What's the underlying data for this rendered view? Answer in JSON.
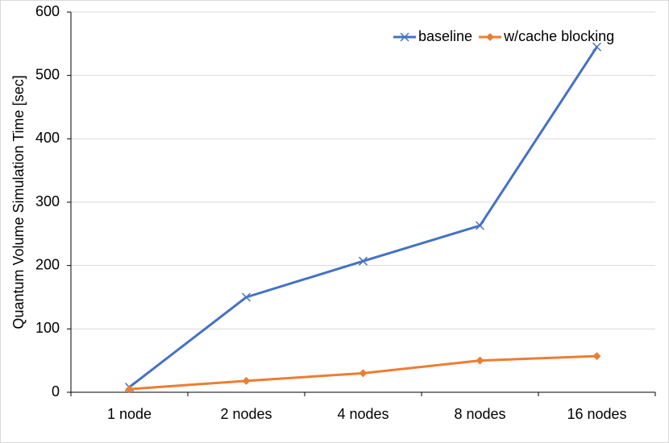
{
  "chart_data": {
    "type": "line",
    "y_label": "Quantum Volume Simulation Time [sec]",
    "categories": [
      "1 node",
      "2 nodes",
      "4 nodes",
      "8 nodes",
      "16 nodes"
    ],
    "series": [
      {
        "name": "baseline",
        "color": "#4472c4",
        "marker": "x",
        "values": [
          8,
          150,
          207,
          263,
          545
        ]
      },
      {
        "name": "w/cache blocking",
        "color": "#ed7d31",
        "marker": "diamond",
        "values": [
          5,
          18,
          30,
          50,
          57
        ]
      }
    ],
    "ylim": [
      0,
      600
    ],
    "yticks": [
      0,
      100,
      200,
      300,
      400,
      500,
      600
    ],
    "grid": true,
    "legend": "upper right"
  }
}
